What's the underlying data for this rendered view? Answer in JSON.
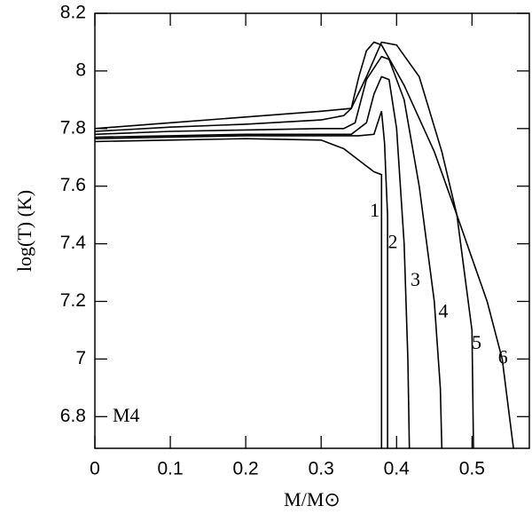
{
  "chart_data": {
    "type": "line",
    "xlabel": "M/M⊙",
    "ylabel": "log(T) (K)",
    "annotation": "M4",
    "xlim": [
      0,
      0.576
    ],
    "ylim": [
      6.69,
      8.2
    ],
    "xticks": [
      0,
      0.1,
      0.2,
      0.3,
      0.4,
      0.5
    ],
    "yticks": [
      6.8,
      7,
      7.2,
      7.4,
      7.6,
      7.8,
      8,
      8.2
    ],
    "series": [
      {
        "name": "1",
        "color": "#000000",
        "label_x": 0.371,
        "label_y": 7.51,
        "x": [
          0,
          0.1,
          0.2,
          0.3,
          0.33,
          0.35,
          0.37,
          0.38,
          0.38
        ],
        "values": [
          7.755,
          7.76,
          7.765,
          7.76,
          7.73,
          7.69,
          7.65,
          7.64,
          6.69
        ]
      },
      {
        "name": "2",
        "color": "#000000",
        "label_x": 0.395,
        "label_y": 7.4,
        "x": [
          0,
          0.1,
          0.2,
          0.3,
          0.35,
          0.37,
          0.375,
          0.38,
          0.384,
          0.386,
          0.388,
          0.388
        ],
        "values": [
          7.765,
          7.77,
          7.775,
          7.775,
          7.775,
          7.78,
          7.82,
          7.86,
          7.75,
          7.62,
          7.5,
          6.69
        ]
      },
      {
        "name": "3",
        "color": "#000000",
        "label_x": 0.425,
        "label_y": 7.27,
        "x": [
          0,
          0.1,
          0.2,
          0.3,
          0.34,
          0.36,
          0.37,
          0.38,
          0.39,
          0.4,
          0.41,
          0.415,
          0.417
        ],
        "values": [
          7.77,
          7.775,
          7.78,
          7.78,
          7.78,
          7.82,
          7.92,
          7.98,
          7.97,
          7.8,
          7.4,
          7.0,
          6.69
        ]
      },
      {
        "name": "4",
        "color": "#000000",
        "label_x": 0.462,
        "label_y": 7.16,
        "x": [
          0,
          0.1,
          0.2,
          0.3,
          0.33,
          0.345,
          0.36,
          0.38,
          0.39,
          0.41,
          0.43,
          0.45,
          0.458,
          0.46
        ],
        "values": [
          7.78,
          7.79,
          7.795,
          7.8,
          7.8,
          7.82,
          7.97,
          8.05,
          8.04,
          7.9,
          7.6,
          7.2,
          6.9,
          6.69
        ]
      },
      {
        "name": "5",
        "color": "#000000",
        "label_x": 0.506,
        "label_y": 7.05,
        "x": [
          0,
          0.1,
          0.2,
          0.3,
          0.33,
          0.34,
          0.35,
          0.36,
          0.37,
          0.38,
          0.41,
          0.45,
          0.48,
          0.5,
          0.502
        ],
        "values": [
          7.79,
          7.805,
          7.815,
          7.83,
          7.845,
          7.87,
          7.98,
          8.07,
          8.1,
          8.09,
          7.95,
          7.72,
          7.5,
          7.1,
          6.69
        ]
      },
      {
        "name": "6",
        "color": "#000000",
        "label_x": 0.541,
        "label_y": 7.0,
        "x": [
          0,
          0.1,
          0.2,
          0.3,
          0.34,
          0.36,
          0.38,
          0.4,
          0.43,
          0.46,
          0.48,
          0.5,
          0.52,
          0.54,
          0.555
        ],
        "values": [
          7.8,
          7.82,
          7.84,
          7.86,
          7.87,
          7.98,
          8.1,
          8.09,
          7.98,
          7.72,
          7.5,
          7.35,
          7.2,
          7.0,
          6.69
        ]
      }
    ]
  }
}
